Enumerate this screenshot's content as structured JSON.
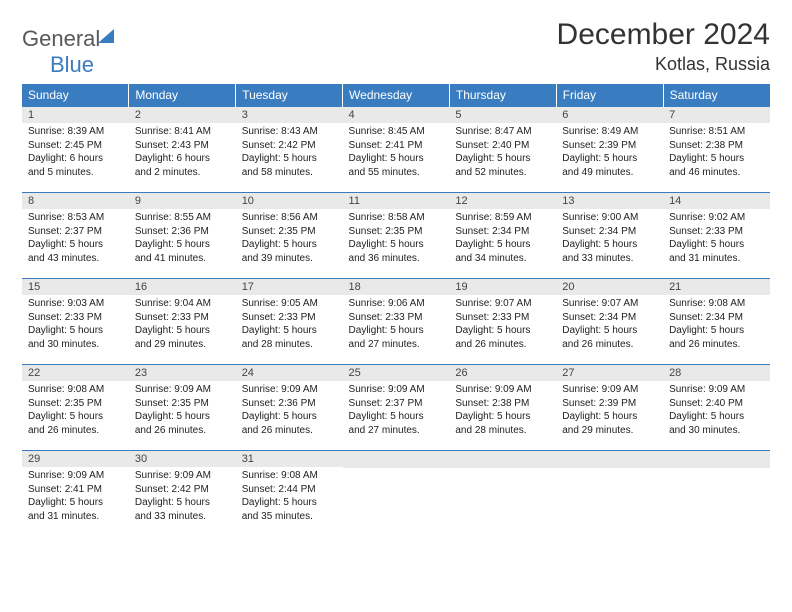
{
  "logo": {
    "part1": "General",
    "part2": "Blue"
  },
  "title": "December 2024",
  "location": "Kotlas, Russia",
  "colors": {
    "header_bg": "#3a7cc0",
    "daynum_bg": "#e9e9e9",
    "rule": "#3a7cc0"
  },
  "weekdays": [
    "Sunday",
    "Monday",
    "Tuesday",
    "Wednesday",
    "Thursday",
    "Friday",
    "Saturday"
  ],
  "weeks": [
    [
      {
        "n": "1",
        "sr": "Sunrise: 8:39 AM",
        "ss": "Sunset: 2:45 PM",
        "d1": "Daylight: 6 hours",
        "d2": "and 5 minutes."
      },
      {
        "n": "2",
        "sr": "Sunrise: 8:41 AM",
        "ss": "Sunset: 2:43 PM",
        "d1": "Daylight: 6 hours",
        "d2": "and 2 minutes."
      },
      {
        "n": "3",
        "sr": "Sunrise: 8:43 AM",
        "ss": "Sunset: 2:42 PM",
        "d1": "Daylight: 5 hours",
        "d2": "and 58 minutes."
      },
      {
        "n": "4",
        "sr": "Sunrise: 8:45 AM",
        "ss": "Sunset: 2:41 PM",
        "d1": "Daylight: 5 hours",
        "d2": "and 55 minutes."
      },
      {
        "n": "5",
        "sr": "Sunrise: 8:47 AM",
        "ss": "Sunset: 2:40 PM",
        "d1": "Daylight: 5 hours",
        "d2": "and 52 minutes."
      },
      {
        "n": "6",
        "sr": "Sunrise: 8:49 AM",
        "ss": "Sunset: 2:39 PM",
        "d1": "Daylight: 5 hours",
        "d2": "and 49 minutes."
      },
      {
        "n": "7",
        "sr": "Sunrise: 8:51 AM",
        "ss": "Sunset: 2:38 PM",
        "d1": "Daylight: 5 hours",
        "d2": "and 46 minutes."
      }
    ],
    [
      {
        "n": "8",
        "sr": "Sunrise: 8:53 AM",
        "ss": "Sunset: 2:37 PM",
        "d1": "Daylight: 5 hours",
        "d2": "and 43 minutes."
      },
      {
        "n": "9",
        "sr": "Sunrise: 8:55 AM",
        "ss": "Sunset: 2:36 PM",
        "d1": "Daylight: 5 hours",
        "d2": "and 41 minutes."
      },
      {
        "n": "10",
        "sr": "Sunrise: 8:56 AM",
        "ss": "Sunset: 2:35 PM",
        "d1": "Daylight: 5 hours",
        "d2": "and 39 minutes."
      },
      {
        "n": "11",
        "sr": "Sunrise: 8:58 AM",
        "ss": "Sunset: 2:35 PM",
        "d1": "Daylight: 5 hours",
        "d2": "and 36 minutes."
      },
      {
        "n": "12",
        "sr": "Sunrise: 8:59 AM",
        "ss": "Sunset: 2:34 PM",
        "d1": "Daylight: 5 hours",
        "d2": "and 34 minutes."
      },
      {
        "n": "13",
        "sr": "Sunrise: 9:00 AM",
        "ss": "Sunset: 2:34 PM",
        "d1": "Daylight: 5 hours",
        "d2": "and 33 minutes."
      },
      {
        "n": "14",
        "sr": "Sunrise: 9:02 AM",
        "ss": "Sunset: 2:33 PM",
        "d1": "Daylight: 5 hours",
        "d2": "and 31 minutes."
      }
    ],
    [
      {
        "n": "15",
        "sr": "Sunrise: 9:03 AM",
        "ss": "Sunset: 2:33 PM",
        "d1": "Daylight: 5 hours",
        "d2": "and 30 minutes."
      },
      {
        "n": "16",
        "sr": "Sunrise: 9:04 AM",
        "ss": "Sunset: 2:33 PM",
        "d1": "Daylight: 5 hours",
        "d2": "and 29 minutes."
      },
      {
        "n": "17",
        "sr": "Sunrise: 9:05 AM",
        "ss": "Sunset: 2:33 PM",
        "d1": "Daylight: 5 hours",
        "d2": "and 28 minutes."
      },
      {
        "n": "18",
        "sr": "Sunrise: 9:06 AM",
        "ss": "Sunset: 2:33 PM",
        "d1": "Daylight: 5 hours",
        "d2": "and 27 minutes."
      },
      {
        "n": "19",
        "sr": "Sunrise: 9:07 AM",
        "ss": "Sunset: 2:33 PM",
        "d1": "Daylight: 5 hours",
        "d2": "and 26 minutes."
      },
      {
        "n": "20",
        "sr": "Sunrise: 9:07 AM",
        "ss": "Sunset: 2:34 PM",
        "d1": "Daylight: 5 hours",
        "d2": "and 26 minutes."
      },
      {
        "n": "21",
        "sr": "Sunrise: 9:08 AM",
        "ss": "Sunset: 2:34 PM",
        "d1": "Daylight: 5 hours",
        "d2": "and 26 minutes."
      }
    ],
    [
      {
        "n": "22",
        "sr": "Sunrise: 9:08 AM",
        "ss": "Sunset: 2:35 PM",
        "d1": "Daylight: 5 hours",
        "d2": "and 26 minutes."
      },
      {
        "n": "23",
        "sr": "Sunrise: 9:09 AM",
        "ss": "Sunset: 2:35 PM",
        "d1": "Daylight: 5 hours",
        "d2": "and 26 minutes."
      },
      {
        "n": "24",
        "sr": "Sunrise: 9:09 AM",
        "ss": "Sunset: 2:36 PM",
        "d1": "Daylight: 5 hours",
        "d2": "and 26 minutes."
      },
      {
        "n": "25",
        "sr": "Sunrise: 9:09 AM",
        "ss": "Sunset: 2:37 PM",
        "d1": "Daylight: 5 hours",
        "d2": "and 27 minutes."
      },
      {
        "n": "26",
        "sr": "Sunrise: 9:09 AM",
        "ss": "Sunset: 2:38 PM",
        "d1": "Daylight: 5 hours",
        "d2": "and 28 minutes."
      },
      {
        "n": "27",
        "sr": "Sunrise: 9:09 AM",
        "ss": "Sunset: 2:39 PM",
        "d1": "Daylight: 5 hours",
        "d2": "and 29 minutes."
      },
      {
        "n": "28",
        "sr": "Sunrise: 9:09 AM",
        "ss": "Sunset: 2:40 PM",
        "d1": "Daylight: 5 hours",
        "d2": "and 30 minutes."
      }
    ],
    [
      {
        "n": "29",
        "sr": "Sunrise: 9:09 AM",
        "ss": "Sunset: 2:41 PM",
        "d1": "Daylight: 5 hours",
        "d2": "and 31 minutes."
      },
      {
        "n": "30",
        "sr": "Sunrise: 9:09 AM",
        "ss": "Sunset: 2:42 PM",
        "d1": "Daylight: 5 hours",
        "d2": "and 33 minutes."
      },
      {
        "n": "31",
        "sr": "Sunrise: 9:08 AM",
        "ss": "Sunset: 2:44 PM",
        "d1": "Daylight: 5 hours",
        "d2": "and 35 minutes."
      },
      null,
      null,
      null,
      null
    ]
  ]
}
